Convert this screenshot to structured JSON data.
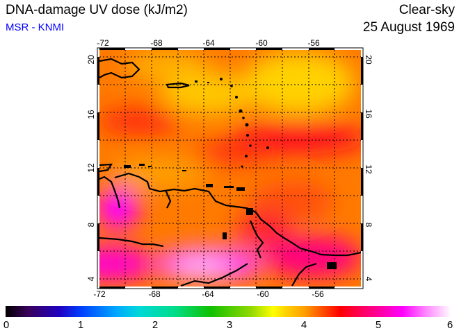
{
  "header": {
    "title": "DNA-damage UV dose (kJ/m2)",
    "subtitle": "MSR - KNMI",
    "condition": "Clear-sky",
    "date": "25 August 1969"
  },
  "map": {
    "lon_ticks": [
      "-72",
      "-68",
      "-64",
      "-60",
      "-56"
    ],
    "lat_ticks": [
      "20",
      "16",
      "12",
      "8",
      "4"
    ],
    "lon_range": [
      -72,
      -52
    ],
    "lat_range": [
      3.5,
      20.5
    ]
  },
  "colorbar": {
    "labels": [
      "0",
      "1",
      "2",
      "3",
      "4",
      "5",
      "6"
    ],
    "min": 0,
    "max": 6
  },
  "colors": {
    "high": "#ff00ff",
    "mid": "#ff0000",
    "low": "#ffd200"
  }
}
